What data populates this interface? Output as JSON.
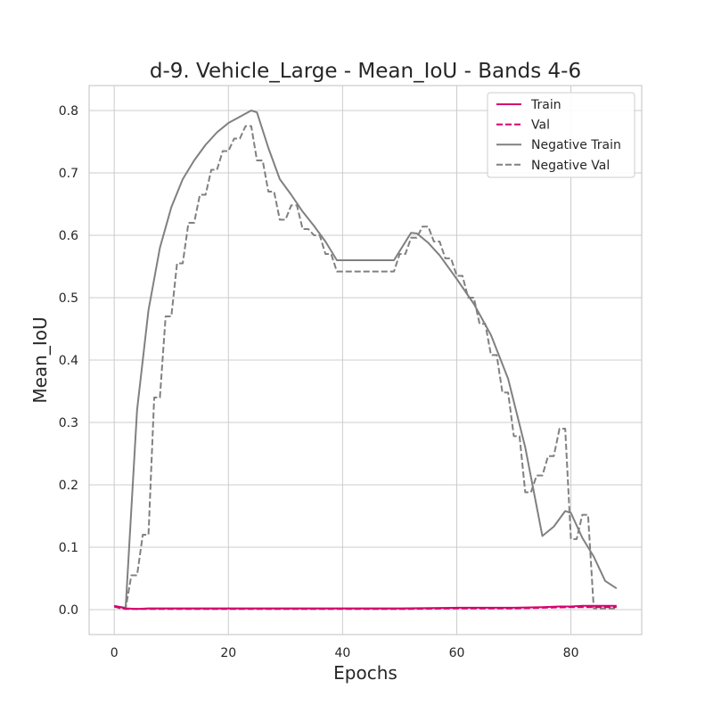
{
  "chart_data": {
    "type": "line",
    "title": "d-9. Vehicle_Large - Mean_IoU - Bands 4-6",
    "xlabel": "Epochs",
    "ylabel": "Mean_IoU",
    "xlim": [
      -4.4,
      92.4
    ],
    "ylim": [
      -0.04,
      0.84
    ],
    "xticks": [
      "0",
      "20",
      "40",
      "60",
      "80"
    ],
    "yticks": [
      "0.0",
      "0.1",
      "0.2",
      "0.3",
      "0.4",
      "0.5",
      "0.6",
      "0.7",
      "0.8"
    ],
    "grid": true,
    "legend_position": "top-right",
    "colors": {
      "train": "#d6006f",
      "negative": "#808080",
      "grid": "#cccccc",
      "frame": "#cccccc"
    },
    "series": [
      {
        "name": "Train",
        "style": "solid",
        "color": "#d6006f",
        "x": [
          0,
          2,
          4,
          6,
          10,
          20,
          30,
          40,
          50,
          60,
          70,
          75,
          78,
          80,
          82,
          84,
          86,
          88
        ],
        "y": [
          0.006,
          0.002,
          0.001,
          0.002,
          0.002,
          0.002,
          0.002,
          0.002,
          0.002,
          0.003,
          0.003,
          0.004,
          0.005,
          0.005,
          0.006,
          0.006,
          0.006,
          0.006
        ]
      },
      {
        "name": "Val",
        "style": "dashed",
        "color": "#d6006f",
        "x": [
          0,
          2,
          4,
          6,
          10,
          20,
          30,
          40,
          50,
          60,
          70,
          75,
          80,
          84,
          88
        ],
        "y": [
          0.005,
          0.001,
          0.001,
          0.001,
          0.001,
          0.001,
          0.001,
          0.001,
          0.001,
          0.002,
          0.002,
          0.003,
          0.004,
          0.004,
          0.004
        ]
      },
      {
        "name": "Negative Train",
        "style": "solid",
        "color": "#808080",
        "x": [
          0,
          2,
          4,
          6,
          8,
          10,
          12,
          14,
          16,
          18,
          20,
          22,
          24,
          25,
          27,
          29,
          31,
          33,
          35,
          37,
          39,
          41,
          49,
          52,
          53,
          55,
          57,
          60,
          63,
          66,
          69,
          72,
          75,
          77,
          79,
          80,
          82,
          84,
          86,
          88
        ],
        "y": [
          0.006,
          0.003,
          0.32,
          0.48,
          0.58,
          0.645,
          0.69,
          0.72,
          0.745,
          0.765,
          0.78,
          0.79,
          0.8,
          0.797,
          0.74,
          0.69,
          0.665,
          0.638,
          0.615,
          0.59,
          0.56,
          0.56,
          0.56,
          0.604,
          0.603,
          0.588,
          0.568,
          0.53,
          0.49,
          0.44,
          0.37,
          0.26,
          0.118,
          0.133,
          0.158,
          0.155,
          0.115,
          0.085,
          0.046,
          0.034
        ]
      },
      {
        "name": "Negative Val",
        "style": "dashed",
        "color": "#808080",
        "x": [
          0,
          1,
          2,
          3,
          4,
          5,
          6,
          7,
          8,
          9,
          10,
          11,
          12,
          13,
          14,
          15,
          16,
          17,
          18,
          19,
          20,
          21,
          22,
          23,
          24,
          25,
          26,
          27,
          28,
          29,
          30,
          31,
          32,
          33,
          34,
          35,
          36,
          37,
          38,
          39,
          40,
          41,
          42,
          43,
          44,
          45,
          46,
          47,
          48,
          49,
          50,
          51,
          52,
          53,
          54,
          55,
          56,
          57,
          58,
          59,
          60,
          61,
          62,
          63,
          64,
          65,
          66,
          67,
          68,
          69,
          70,
          71,
          72,
          73,
          74,
          75,
          76,
          77,
          78,
          79,
          80,
          81,
          82,
          83,
          84,
          85,
          86,
          87,
          88
        ],
        "y": [
          0.005,
          0.002,
          0.002,
          0.055,
          0.055,
          0.12,
          0.12,
          0.34,
          0.34,
          0.47,
          0.47,
          0.555,
          0.555,
          0.62,
          0.62,
          0.665,
          0.665,
          0.705,
          0.705,
          0.735,
          0.735,
          0.755,
          0.755,
          0.775,
          0.775,
          0.72,
          0.72,
          0.67,
          0.67,
          0.625,
          0.625,
          0.648,
          0.648,
          0.61,
          0.61,
          0.6,
          0.6,
          0.57,
          0.57,
          0.542,
          0.542,
          0.542,
          0.542,
          0.542,
          0.542,
          0.542,
          0.542,
          0.542,
          0.542,
          0.542,
          0.57,
          0.57,
          0.596,
          0.596,
          0.614,
          0.614,
          0.59,
          0.59,
          0.563,
          0.563,
          0.535,
          0.535,
          0.5,
          0.5,
          0.458,
          0.458,
          0.408,
          0.408,
          0.348,
          0.348,
          0.278,
          0.278,
          0.188,
          0.188,
          0.215,
          0.215,
          0.246,
          0.246,
          0.29,
          0.29,
          0.113,
          0.113,
          0.152,
          0.152,
          0.002,
          0.002,
          0.002,
          0.002,
          0.002
        ]
      }
    ]
  }
}
